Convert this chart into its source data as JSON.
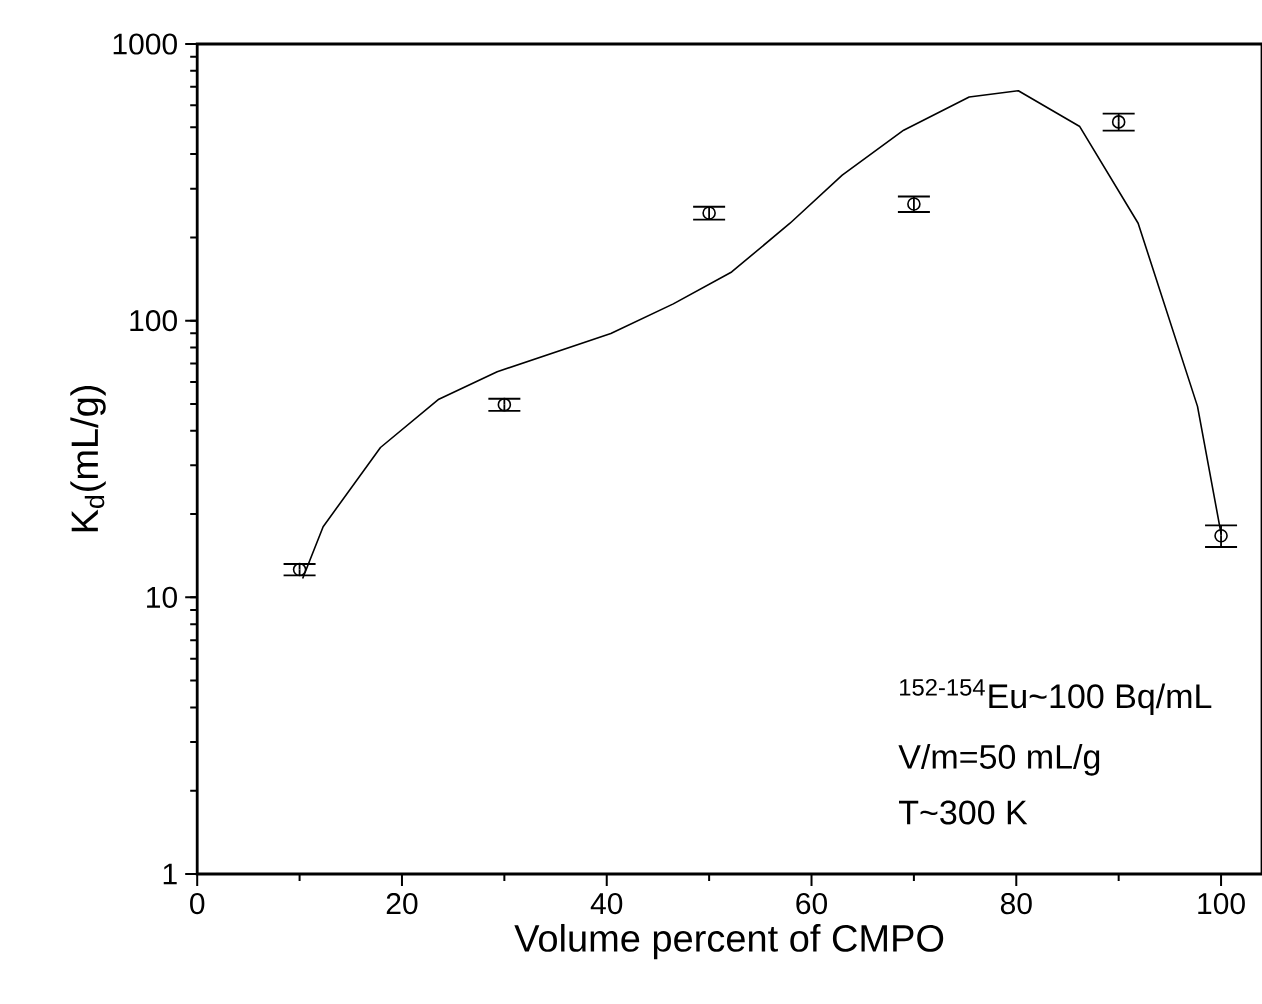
{
  "chart_data": {
    "type": "scatter",
    "xlabel": "Volume percent of CMPO",
    "ylabel": "K$_{d}$(mL/g)",
    "log": "y",
    "xlim": [
      0,
      104
    ],
    "ylim": [
      1,
      1000
    ],
    "xticks": [
      0,
      20,
      40,
      60,
      80,
      100
    ],
    "yticks": [
      1,
      10,
      100,
      1000
    ],
    "annotations": [
      "$^{152-154}$Eu~100 Bq/mL",
      "V/m=50 mL/g",
      "T~300 K"
    ],
    "series": [
      {
        "marker": "circle",
        "color": "#000000",
        "x": [
          10,
          30,
          50,
          70,
          90,
          100
        ],
        "values": [
          12.6,
          49.7,
          245,
          264,
          523,
          16.7
        ],
        "errors": [
          0.6,
          2.5,
          13,
          17,
          37,
          1.5
        ]
      },
      {
        "type": "line",
        "marker": "none",
        "line_style": "solid",
        "color": "#000000",
        "x": [
          10.3,
          12.3,
          17.9,
          23.6,
          29.3,
          40.4,
          46.5,
          52.2,
          57.9,
          63.0,
          69.0,
          75.4,
          80.2,
          86.2,
          91.9,
          97.7,
          100.0
        ],
        "values": [
          11.7,
          18.0,
          34.8,
          52,
          65.4,
          89.8,
          115,
          150,
          225,
          336,
          488,
          643,
          678,
          503,
          225,
          49,
          17.0
        ]
      }
    ]
  }
}
